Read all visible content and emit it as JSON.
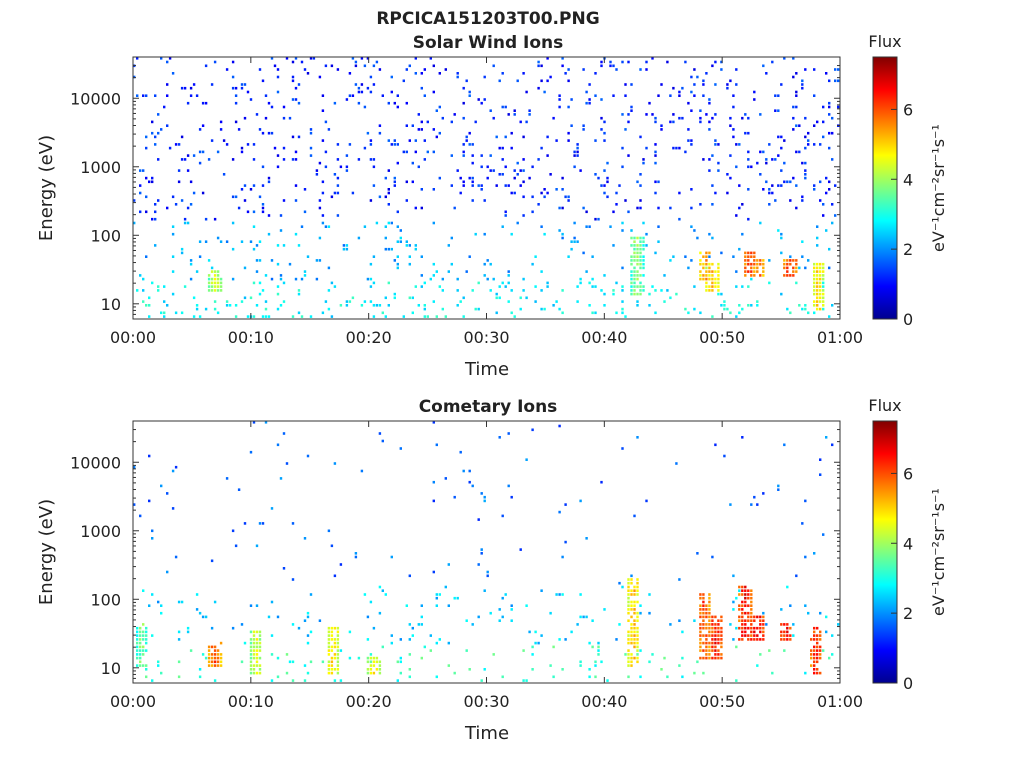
{
  "figure": {
    "title": "RPCICA151203T00.PNG"
  },
  "chart_data": [
    {
      "type": "heatmap",
      "title": "Solar Wind Ions",
      "xlabel": "Time",
      "ylabel": "Energy (eV)",
      "x_ticks": [
        "00:00",
        "00:10",
        "00:20",
        "00:30",
        "00:40",
        "00:50",
        "01:00"
      ],
      "xlim_minutes": [
        0,
        60
      ],
      "y_ticks": [
        "10",
        "100",
        "1000",
        "10000"
      ],
      "y_tick_values": [
        10,
        100,
        1000,
        10000
      ],
      "yscale": "log",
      "ylim": [
        6,
        40000
      ],
      "colorbar": {
        "title": "Flux",
        "label": "eV⁻¹cm⁻²sr⁻¹s⁻¹",
        "ticks": [
          "0",
          "2",
          "4",
          "6"
        ],
        "range": [
          0,
          7.5
        ],
        "colormap": "jet"
      },
      "scatter_density": 0.95,
      "clusters": [
        {
          "t": 7.0,
          "e_min": 15,
          "e_max": 30,
          "flux": 4.4
        },
        {
          "t": 42.8,
          "e_min": 12,
          "e_max": 90,
          "flux": 4.0
        },
        {
          "t": 48.6,
          "e_min": 20,
          "e_max": 60,
          "flux": 5.5
        },
        {
          "t": 49.2,
          "e_min": 15,
          "e_max": 40,
          "flux": 5.2
        },
        {
          "t": 52.3,
          "e_min": 25,
          "e_max": 55,
          "flux": 6.2
        },
        {
          "t": 53.2,
          "e_min": 25,
          "e_max": 45,
          "flux": 5.8
        },
        {
          "t": 55.8,
          "e_min": 25,
          "e_max": 45,
          "flux": 6.3
        },
        {
          "t": 58.2,
          "e_min": 8,
          "e_max": 40,
          "flux": 5.0
        }
      ]
    },
    {
      "type": "heatmap",
      "title": "Cometary Ions",
      "xlabel": "Time",
      "ylabel": "Energy (eV)",
      "x_ticks": [
        "00:00",
        "00:10",
        "00:20",
        "00:30",
        "00:40",
        "00:50",
        "01:00"
      ],
      "xlim_minutes": [
        0,
        60
      ],
      "y_ticks": [
        "10",
        "100",
        "1000",
        "10000"
      ],
      "y_tick_values": [
        10,
        100,
        1000,
        10000
      ],
      "yscale": "log",
      "ylim": [
        6,
        40000
      ],
      "colorbar": {
        "title": "Flux",
        "label": "eV⁻¹cm⁻²sr⁻¹s⁻¹",
        "ticks": [
          "0",
          "2",
          "4",
          "6"
        ],
        "range": [
          0,
          7.5
        ],
        "colormap": "jet"
      },
      "scatter_density": 0.3,
      "clusters": [
        {
          "t": 0.8,
          "e_min": 10,
          "e_max": 45,
          "flux": 3.8
        },
        {
          "t": 7.0,
          "e_min": 10,
          "e_max": 25,
          "flux": 6.0
        },
        {
          "t": 10.5,
          "e_min": 8,
          "e_max": 35,
          "flux": 4.5
        },
        {
          "t": 17.0,
          "e_min": 8,
          "e_max": 40,
          "flux": 5.0
        },
        {
          "t": 20.5,
          "e_min": 8,
          "e_max": 15,
          "flux": 4.8
        },
        {
          "t": 42.5,
          "e_min": 10,
          "e_max": 200,
          "flux": 5.2
        },
        {
          "t": 48.5,
          "e_min": 12,
          "e_max": 120,
          "flux": 6.2
        },
        {
          "t": 49.5,
          "e_min": 12,
          "e_max": 60,
          "flux": 6.5
        },
        {
          "t": 52.0,
          "e_min": 25,
          "e_max": 150,
          "flux": 6.6
        },
        {
          "t": 53.0,
          "e_min": 25,
          "e_max": 60,
          "flux": 6.8
        },
        {
          "t": 55.5,
          "e_min": 25,
          "e_max": 45,
          "flux": 6.6
        },
        {
          "t": 58.0,
          "e_min": 8,
          "e_max": 40,
          "flux": 6.4
        }
      ]
    }
  ]
}
